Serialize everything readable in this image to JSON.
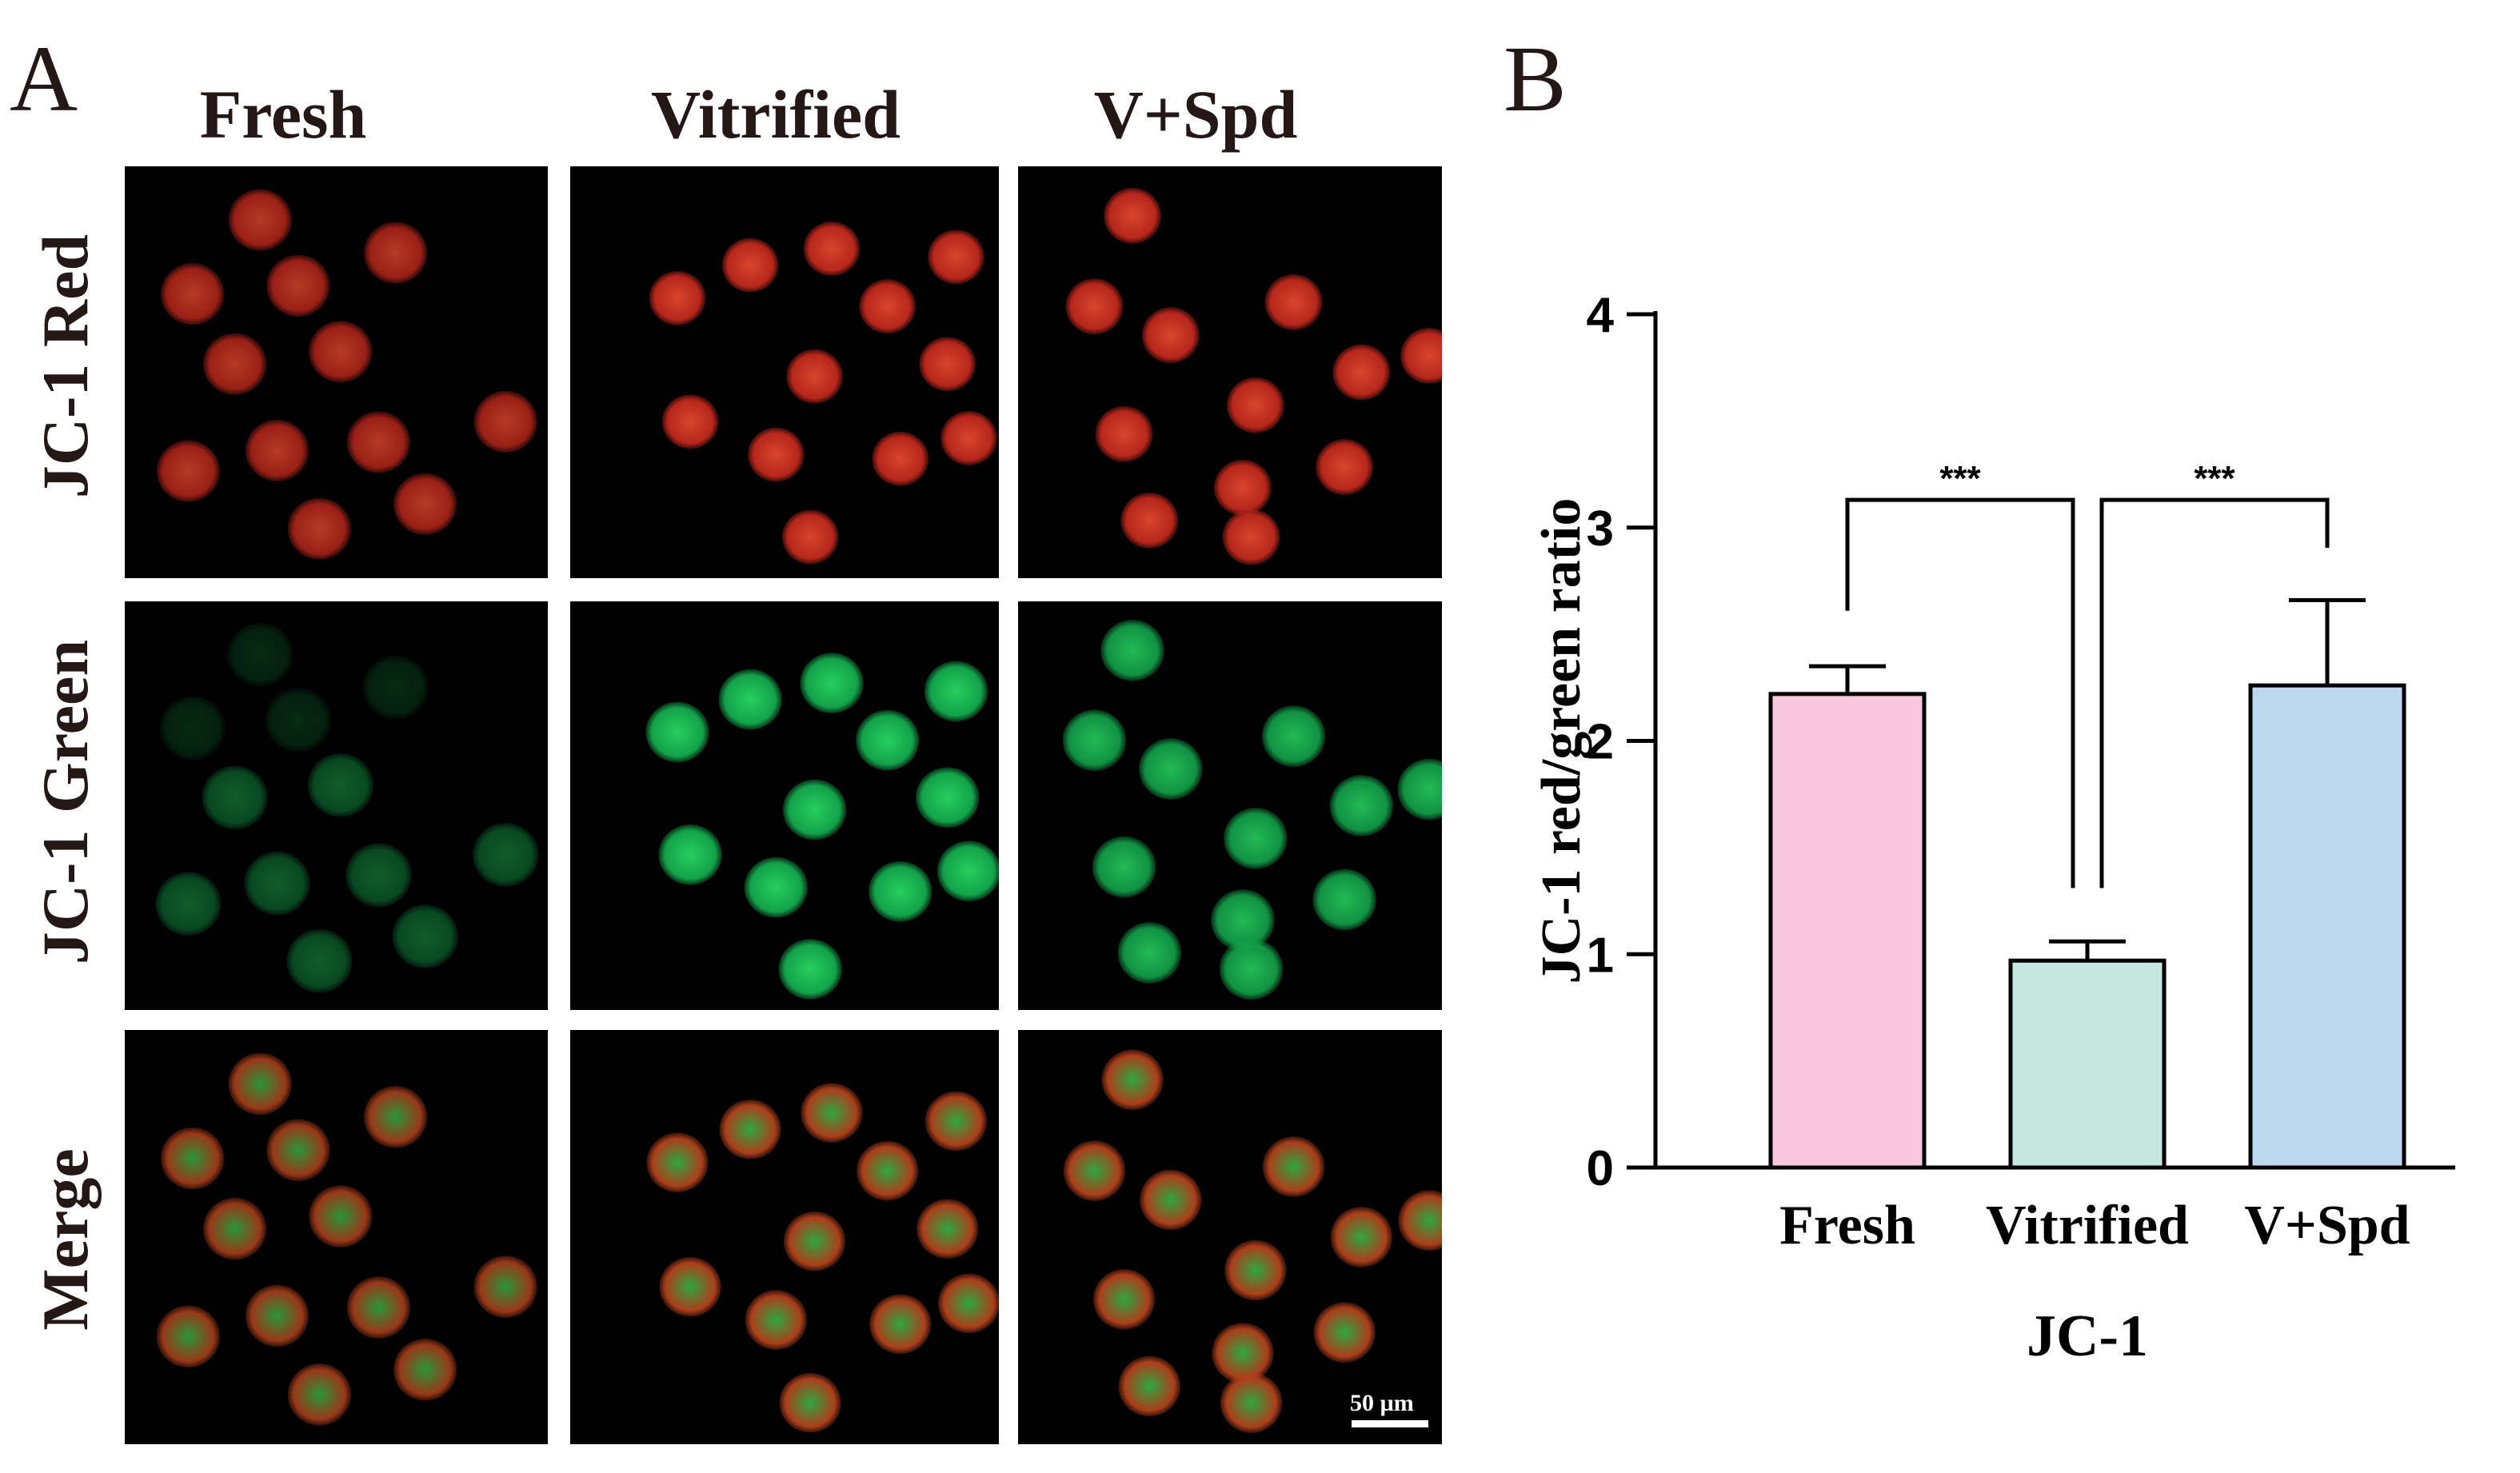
{
  "panel_a": {
    "letter": "A",
    "columns": [
      "Fresh",
      "Vitrified",
      "V+Spd"
    ],
    "rows": [
      "JC-1 Red",
      "JC-1 Green",
      "Merge"
    ],
    "scale_bar_label": "50 µm",
    "colors": {
      "red_channel": "#c4281e",
      "green_channel": "#16a84a",
      "background": "#000000"
    }
  },
  "panel_b": {
    "letter": "B"
  },
  "chart_data": {
    "type": "bar",
    "categories": [
      "Fresh",
      "Vitrified",
      "V+Spd"
    ],
    "values": [
      2.22,
      0.97,
      2.26
    ],
    "errors": [
      0.13,
      0.09,
      0.4
    ],
    "colors": [
      "#f9c8df",
      "#c4e8df",
      "#bdd9f1"
    ],
    "xlabel": "JC-1",
    "ylabel": "JC-1 red/green ratio",
    "ylim": [
      0,
      4
    ],
    "yticks": [
      0,
      1,
      2,
      3,
      4
    ],
    "significance": [
      {
        "from": 0,
        "to": 1,
        "label": "***"
      },
      {
        "from": 1,
        "to": 2,
        "label": "***"
      }
    ],
    "grid": false,
    "legend": "none"
  }
}
